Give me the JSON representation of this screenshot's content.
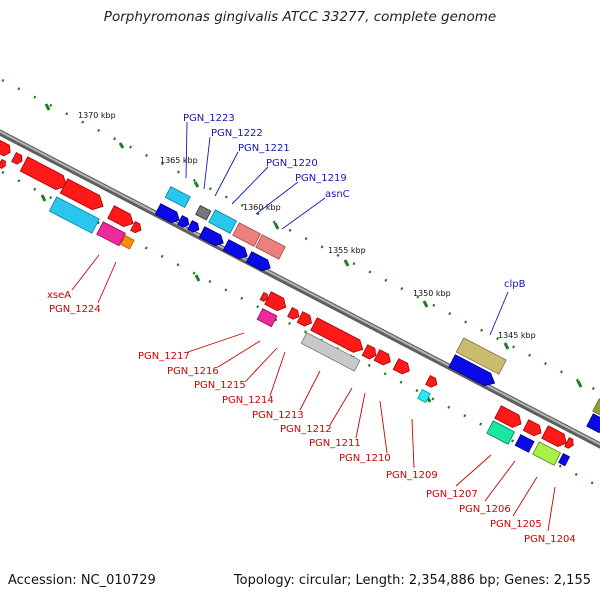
{
  "title": "Porphyromonas gingivalis ATCC 33277, complete genome",
  "footer": {
    "accession": "Accession: NC_010729",
    "summary": "Topology: circular; Length: 2,354,886 bp; Genes: 2,155"
  },
  "colors": {
    "backbone": "#8a8a8a",
    "tick": "#1e7d1e",
    "label_blue": "#1515b5",
    "label_red": "#d00000"
  },
  "scale": {
    "1370": "1370 kbp",
    "1365": "1365 kbp",
    "1360": "1360 kbp",
    "1355": "1355 kbp",
    "1350": "1350 kbp",
    "1345": "1345 kbp"
  },
  "genes_top": {
    "pgn1223": "PGN_1223",
    "pgn1222": "PGN_1222",
    "pgn1221": "PGN_1221",
    "pgn1220": "PGN_1220",
    "pgn1219": "PGN_1219",
    "asnc": "asnC",
    "clpb": "clpB"
  },
  "genes_bottom": {
    "xsea": "xseA",
    "pgn1224": "PGN_1224",
    "pgn1217": "PGN_1217",
    "pgn1216": "PGN_1216",
    "pgn1215": "PGN_1215",
    "pgn1214": "PGN_1214",
    "pgn1213": "PGN_1213",
    "pgn1212": "PGN_1212",
    "pgn1211": "PGN_1211",
    "pgn1210": "PGN_1210",
    "pgn1209": "PGN_1209",
    "pgn1207": "PGN_1207",
    "pgn1206": "PGN_1206",
    "pgn1205": "PGN_1205",
    "pgn1204": "PGN_1204"
  }
}
